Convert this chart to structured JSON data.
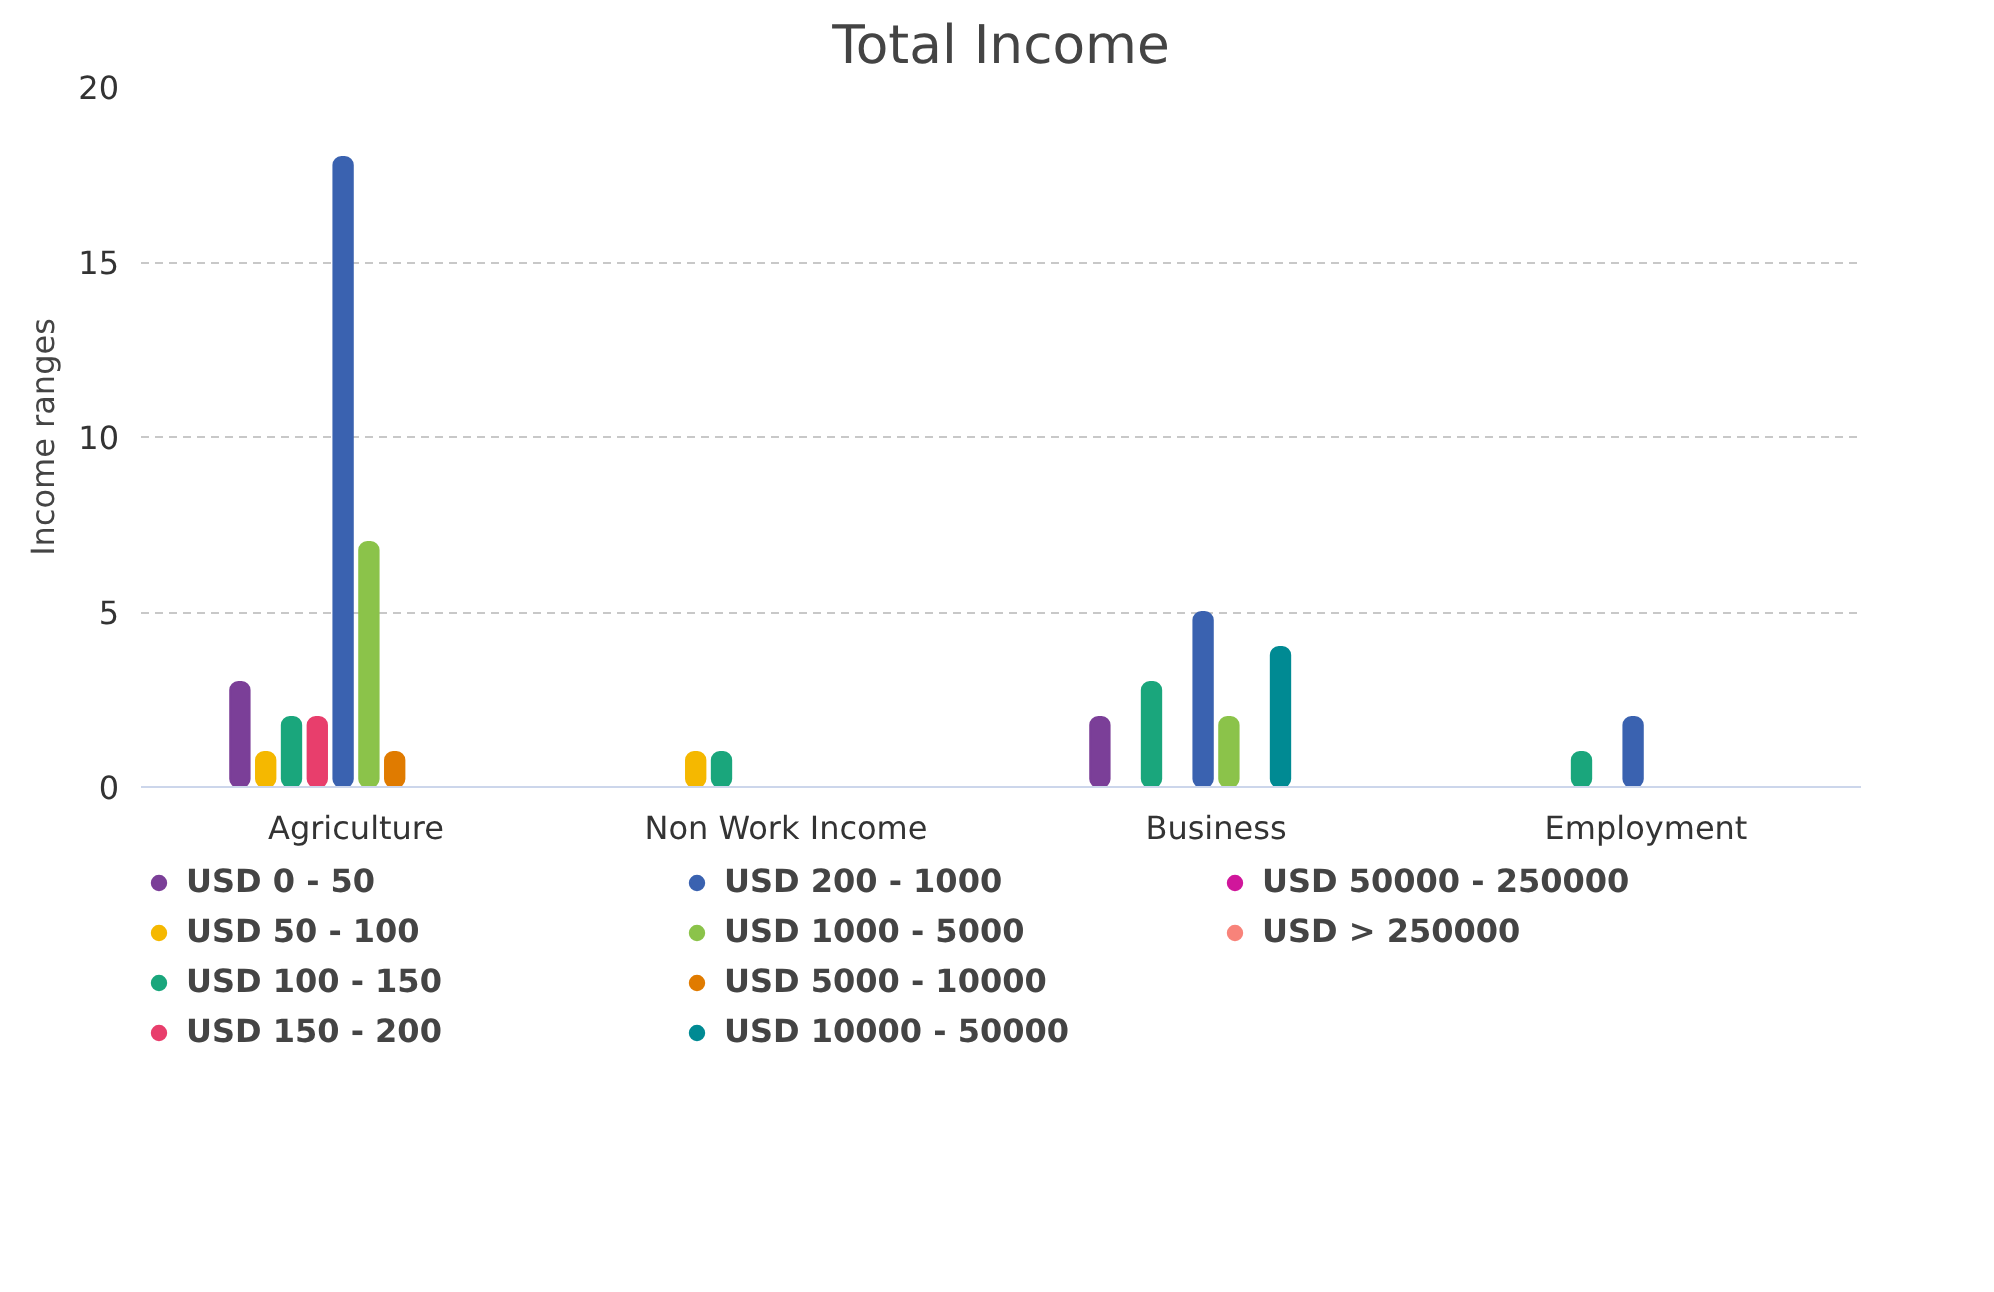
{
  "chart_data": {
    "type": "bar",
    "title": "Total Income",
    "ylabel": "Income ranges",
    "categories": [
      "Agriculture",
      "Non Work Income",
      "Business",
      "Employment"
    ],
    "series": [
      {
        "name": "USD 0 - 50",
        "color": "#7b3f98",
        "values": [
          3,
          null,
          2,
          null
        ]
      },
      {
        "name": "USD 50 - 100",
        "color": "#f5b800",
        "values": [
          1,
          1,
          null,
          null
        ]
      },
      {
        "name": "USD 100 - 150",
        "color": "#1aa67c",
        "values": [
          2,
          1,
          3,
          1
        ]
      },
      {
        "name": "USD 150 - 200",
        "color": "#e83e6c",
        "values": [
          2,
          null,
          null,
          null
        ]
      },
      {
        "name": "USD 200 - 1000",
        "color": "#3a62b0",
        "values": [
          18,
          null,
          5,
          2
        ]
      },
      {
        "name": "USD 1000 - 5000",
        "color": "#8bc34a",
        "values": [
          7,
          null,
          2,
          null
        ]
      },
      {
        "name": "USD 5000 - 10000",
        "color": "#e07b00",
        "values": [
          1,
          null,
          null,
          null
        ]
      },
      {
        "name": "USD 10000 - 50000",
        "color": "#008a93",
        "values": [
          null,
          null,
          4,
          null
        ]
      },
      {
        "name": "USD 50000 - 250000",
        "color": "#d0169b",
        "values": [
          null,
          null,
          null,
          null
        ]
      },
      {
        "name": "USD > 250000",
        "color": "#f8837a",
        "values": [
          null,
          null,
          null,
          null
        ]
      }
    ],
    "ylim": [
      0,
      20
    ],
    "yticks": [
      0,
      5,
      10,
      15,
      20
    ],
    "grid": "y",
    "legend": "bottom"
  }
}
